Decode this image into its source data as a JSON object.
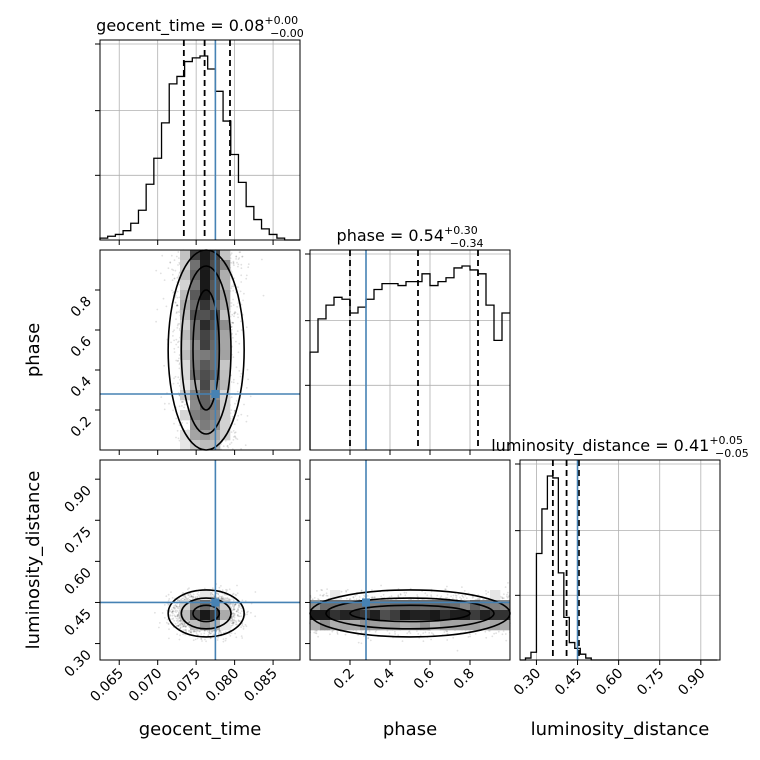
{
  "chart_data": {
    "type": "corner",
    "parameters": [
      "geocent_time",
      "phase",
      "luminosity_distance"
    ],
    "truths": {
      "geocent_time": 0.0775,
      "phase": 0.28,
      "luminosity_distance": 0.45
    },
    "diagonal": [
      {
        "param": "geocent_time",
        "title": {
          "main": "geocent_time = 0.08",
          "sup": "+0.00",
          "sub": "−0.00"
        },
        "range": [
          0.0625,
          0.0885
        ],
        "bin_width": 0.001,
        "counts": [
          1,
          2,
          3,
          5,
          9,
          16,
          30,
          44,
          63,
          84,
          88,
          96,
          98,
          99,
          92,
          80,
          64,
          46,
          31,
          18,
          11,
          6,
          3,
          1,
          0,
          0
        ],
        "quantiles": [
          0.0734,
          0.0761,
          0.0794
        ],
        "ticks": [
          0.065,
          0.07,
          0.075,
          0.08,
          0.085
        ],
        "tick_labels": [
          "0.065",
          "0.070",
          "0.075",
          "0.080",
          "0.085"
        ]
      },
      {
        "param": "phase",
        "title": {
          "main": "phase = 0.54",
          "sup": "+0.30",
          "sub": "−0.34"
        },
        "range": [
          0.0,
          1.0
        ],
        "bin_width": 0.04,
        "counts": [
          50,
          67,
          74,
          78,
          77,
          70,
          73,
          77,
          82,
          85,
          85,
          84,
          86,
          86,
          90,
          84,
          86,
          88,
          93,
          94,
          92,
          90,
          74,
          56,
          70
        ],
        "quantiles": [
          0.2,
          0.54,
          0.84
        ],
        "ticks": [
          0.2,
          0.4,
          0.6,
          0.8
        ],
        "tick_labels": [
          "0.2",
          "0.4",
          "0.6",
          "0.8"
        ]
      },
      {
        "param": "luminosity_distance",
        "title": {
          "main": "luminosity_distance = 0.41",
          "sup": "+0.05",
          "sub": "−0.05"
        },
        "range": [
          0.24,
          0.97
        ],
        "bin_width": 0.02,
        "counts": [
          0,
          1,
          4,
          55,
          78,
          95,
          94,
          45,
          22,
          9,
          6,
          3,
          1,
          0,
          0,
          0,
          0,
          0,
          0,
          0,
          0,
          0,
          0,
          0,
          0,
          0,
          0,
          0,
          0,
          0,
          0,
          0,
          0,
          0,
          0,
          0
        ],
        "quantiles": [
          0.36,
          0.41,
          0.455
        ],
        "ticks": [
          0.3,
          0.45,
          0.6,
          0.75,
          0.9
        ],
        "tick_labels": [
          "0.30",
          "0.45",
          "0.60",
          "0.75",
          "0.90"
        ]
      }
    ],
    "joint": [
      {
        "x": "geocent_time",
        "y": "phase",
        "xrange": [
          0.0625,
          0.0885
        ],
        "yrange": [
          0.0,
          1.0
        ],
        "x_center": 0.0763,
        "x_sigma": 0.0019,
        "y_ticks": [
          0.2,
          0.4,
          0.6,
          0.8
        ],
        "y_tick_labels": [
          "0.2",
          "0.4",
          "0.6",
          "0.8"
        ]
      },
      {
        "x": "geocent_time",
        "y": "luminosity_distance",
        "xrange": [
          0.0625,
          0.0885
        ],
        "yrange": [
          0.24,
          0.97
        ],
        "x_center": 0.0763,
        "x_sigma": 0.0019,
        "y_center": 0.41,
        "y_sigma": 0.033,
        "y_ticks": [
          0.3,
          0.45,
          0.6,
          0.75,
          0.9
        ],
        "y_tick_labels": [
          "0.30",
          "0.45",
          "0.60",
          "0.75",
          "0.90"
        ]
      },
      {
        "x": "phase",
        "y": "luminosity_distance",
        "xrange": [
          0.0,
          1.0
        ],
        "yrange": [
          0.24,
          0.97
        ],
        "y_center": 0.41,
        "y_sigma": 0.033
      }
    ],
    "axis_labels": {
      "x": [
        "geocent_time",
        "phase",
        "luminosity_distance"
      ],
      "y": [
        "phase",
        "luminosity_distance"
      ]
    },
    "grid": true,
    "colors": {
      "truth": "#4682b4",
      "line": "#000000"
    }
  }
}
